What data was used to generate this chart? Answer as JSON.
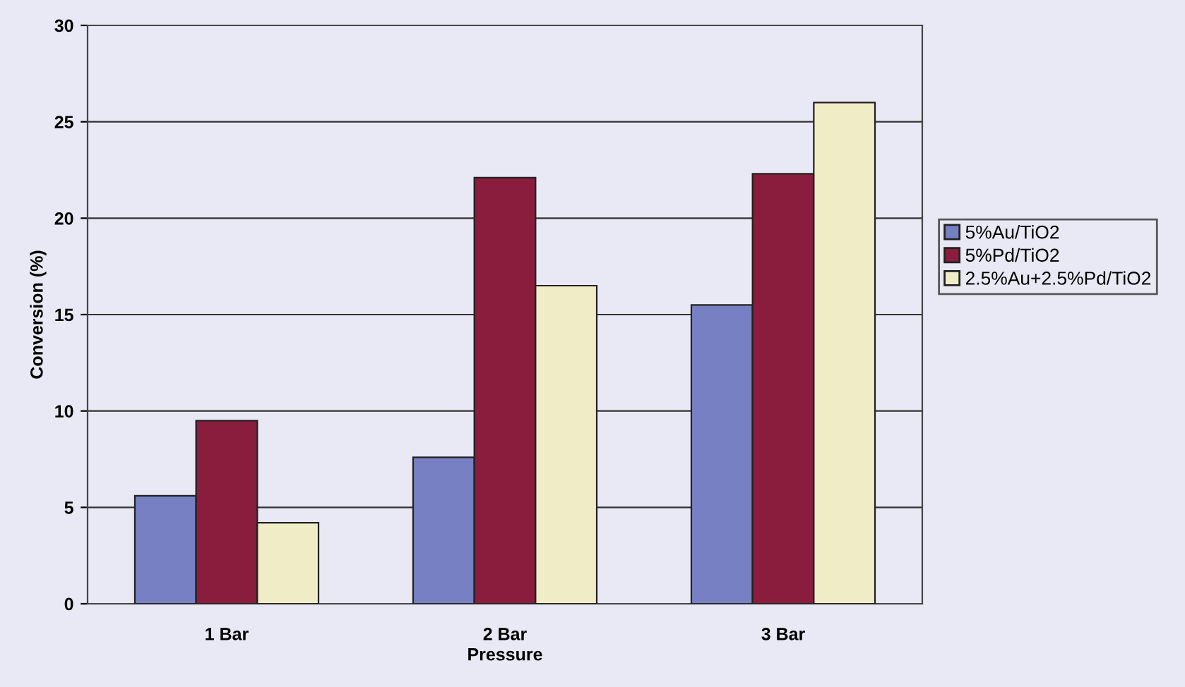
{
  "chart_data": {
    "type": "bar",
    "xlabel": "Pressure",
    "ylabel": "Conversion (%)",
    "categories": [
      "1 Bar",
      "2 Bar",
      "3 Bar"
    ],
    "series": [
      {
        "name": "5%Au/TiO2",
        "color": "#7880c4",
        "values": [
          5.6,
          7.6,
          15.5
        ]
      },
      {
        "name": "5%Pd/TiO2",
        "color": "#8a1c3e",
        "values": [
          9.5,
          22.1,
          22.3
        ]
      },
      {
        "name": "2.5%Au+2.5%Pd/TiO2",
        "color": "#f0ecc6",
        "values": [
          4.2,
          16.5,
          26.0
        ]
      }
    ],
    "ylim": [
      0,
      30
    ],
    "yticks": [
      0,
      5,
      10,
      15,
      20,
      25,
      30
    ],
    "grid": "y",
    "legend": "right"
  }
}
